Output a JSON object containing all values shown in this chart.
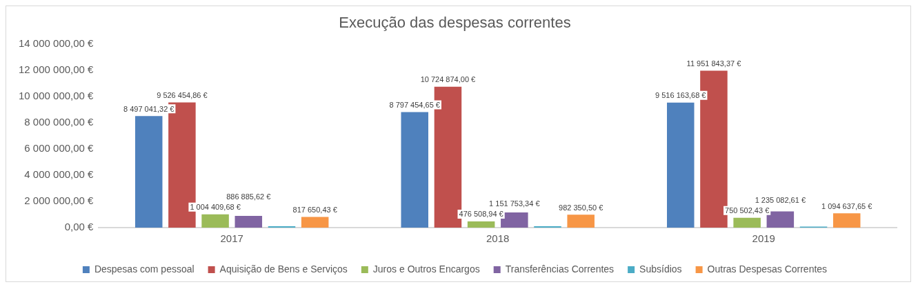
{
  "chart_data": {
    "type": "bar",
    "title": "Execução das despesas correntes",
    "categories": [
      "2017",
      "2018",
      "2019"
    ],
    "series": [
      {
        "name": "Despesas com pessoal",
        "color": "#4f81bd",
        "values": [
          8497041.32,
          8797454.65,
          9516163.68
        ],
        "value_labels": [
          "8 497 041,32 €",
          "8 797 454,65 €",
          "9 516 163,68 €"
        ]
      },
      {
        "name": "Aquisição de Bens e Serviços",
        "color": "#c0504d",
        "values": [
          9526454.86,
          10724874.0,
          11951843.37
        ],
        "value_labels": [
          "9 526 454,86 €",
          "10 724 874,00 €",
          "11 951 843,37 €"
        ]
      },
      {
        "name": "Juros e Outros Encargos",
        "color": "#9bbb59",
        "values": [
          1004409.68,
          476508.94,
          750502.43
        ],
        "value_labels": [
          "1 004 409,68 €",
          "476 508,94 €",
          "750 502,43 €"
        ]
      },
      {
        "name": "Transferências Correntes",
        "color": "#8064a2",
        "values": [
          886885.62,
          1151753.34,
          1235082.61
        ],
        "value_labels": [
          "886 885,62 €",
          "1 151 753,34 €",
          "1 235 082,61 €"
        ]
      },
      {
        "name": "Subsídios",
        "color": "#4bacc6",
        "values": [
          100000,
          100000,
          80000
        ]
      },
      {
        "name": "Outras Despesas Correntes",
        "color": "#f79646",
        "values": [
          817650.43,
          982350.5,
          1094637.65
        ],
        "value_labels": [
          "817 650,43 €",
          "982 350,50 €",
          "1 094 637,65 €"
        ]
      }
    ],
    "ylim": [
      0,
      14000000
    ],
    "yticks": [
      {
        "value": 0,
        "label": "0,00 €"
      },
      {
        "value": 2000000,
        "label": "2 000 000,00 €"
      },
      {
        "value": 4000000,
        "label": "4 000 000,00 €"
      },
      {
        "value": 6000000,
        "label": "6 000 000,00 €"
      },
      {
        "value": 8000000,
        "label": "8 000 000,00 €"
      },
      {
        "value": 10000000,
        "label": "10 000 000,00 €"
      },
      {
        "value": 12000000,
        "label": "12 000 000,00 €"
      },
      {
        "value": 14000000,
        "label": "14 000 000,00 €"
      }
    ],
    "legend": "bottom"
  }
}
